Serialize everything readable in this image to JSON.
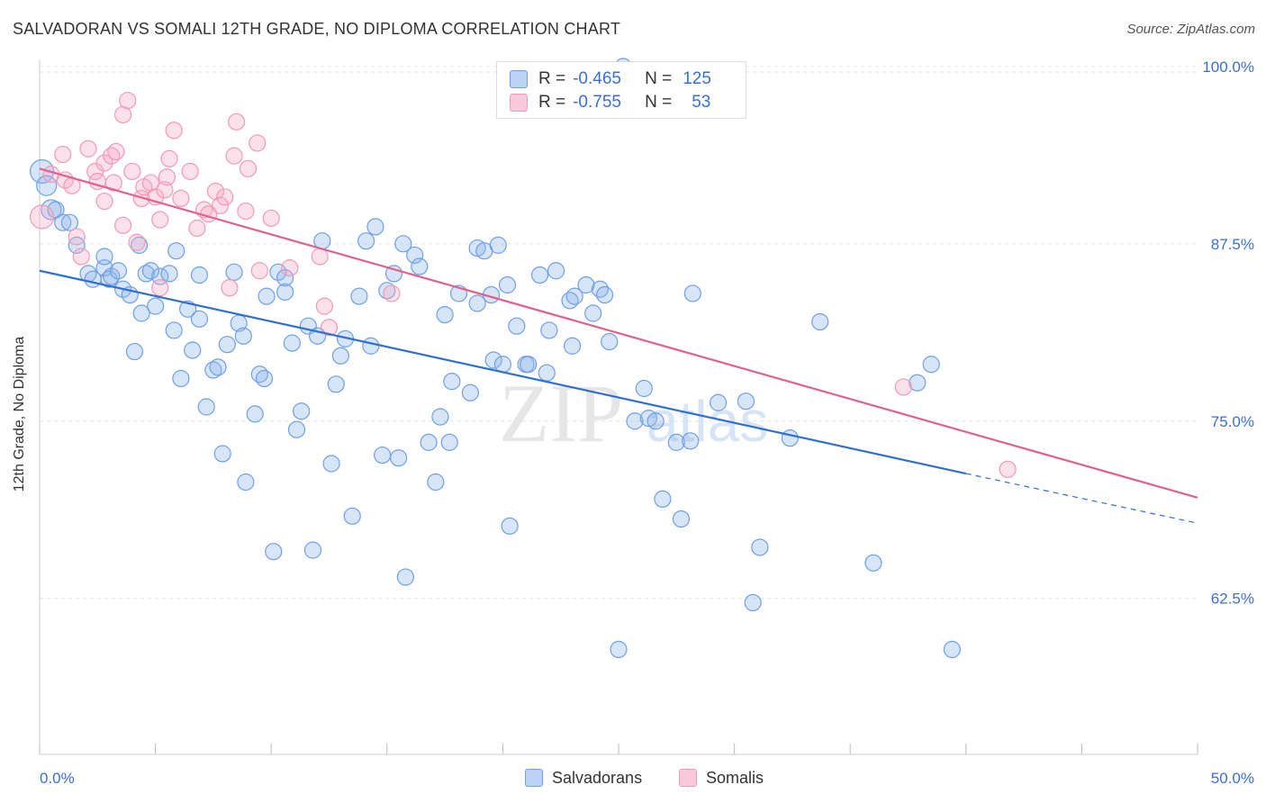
{
  "title": "SALVADORAN VS SOMALI 12TH GRADE, NO DIPLOMA CORRELATION CHART",
  "source": "Source: ZipAtlas.com",
  "watermark": {
    "zip": "ZIP",
    "atlas": "atlas"
  },
  "legend": {
    "rows": [
      {
        "r_label": "R =",
        "r_value": "-0.465",
        "n_label": "N =",
        "n_value": "125"
      },
      {
        "r_label": "R =",
        "r_value": "-0.755",
        "n_label": "N =",
        "n_value": "53"
      }
    ]
  },
  "bottom_legend": {
    "salvadorans": "Salvadorans",
    "somalis": "Somalis"
  },
  "chart_data": {
    "type": "scatter",
    "title": "SALVADORAN VS SOMALI 12TH GRADE, NO DIPLOMA CORRELATION CHART",
    "xlabel": "",
    "ylabel": "12th Grade, No Diploma",
    "xlim": [
      0,
      50
    ],
    "ylim": [
      51.5,
      100.5
    ],
    "x_tick_labels": [
      "0.0%",
      "50.0%"
    ],
    "y_ticks": [
      62.5,
      75.0,
      87.5,
      100.0
    ],
    "y_tick_labels": [
      "62.5%",
      "75.0%",
      "87.5%",
      "100.0%"
    ],
    "grid": true,
    "legend_position": "top-center",
    "colors": {
      "salvadorans": "#6f9fe6",
      "somalis": "#ef9ab6",
      "blue_line": "#2f6fd1",
      "pink_line": "#e0608e",
      "tick_text": "#3a6fd8"
    },
    "series": [
      {
        "name": "Salvadorans",
        "r": -0.465,
        "n": 125,
        "trend": {
          "x": [
            0,
            40
          ],
          "y": [
            85.6,
            71.3
          ],
          "dashed_to": [
            50,
            67.8
          ]
        },
        "points": [
          [
            0.1,
            92.6
          ],
          [
            0.3,
            91.6
          ],
          [
            0.5,
            89.9
          ],
          [
            0.7,
            89.9
          ],
          [
            1.0,
            89.0
          ],
          [
            1.3,
            89.0
          ],
          [
            1.6,
            87.4
          ],
          [
            2.1,
            85.4
          ],
          [
            2.3,
            85.0
          ],
          [
            2.8,
            85.8
          ],
          [
            2.8,
            86.6
          ],
          [
            3.0,
            85.0
          ],
          [
            3.1,
            85.2
          ],
          [
            3.4,
            85.6
          ],
          [
            3.6,
            84.3
          ],
          [
            3.9,
            83.9
          ],
          [
            4.1,
            79.9
          ],
          [
            4.3,
            87.4
          ],
          [
            4.4,
            82.6
          ],
          [
            4.6,
            85.4
          ],
          [
            4.8,
            85.6
          ],
          [
            5.0,
            83.1
          ],
          [
            5.2,
            85.2
          ],
          [
            5.6,
            85.4
          ],
          [
            5.8,
            81.4
          ],
          [
            5.9,
            87.0
          ],
          [
            6.1,
            78.0
          ],
          [
            6.4,
            82.9
          ],
          [
            6.6,
            80.0
          ],
          [
            6.9,
            85.3
          ],
          [
            6.9,
            82.2
          ],
          [
            7.2,
            76.0
          ],
          [
            7.5,
            78.6
          ],
          [
            7.7,
            78.8
          ],
          [
            7.9,
            72.7
          ],
          [
            8.1,
            80.4
          ],
          [
            8.4,
            85.5
          ],
          [
            8.6,
            81.9
          ],
          [
            8.8,
            81.0
          ],
          [
            8.9,
            70.7
          ],
          [
            9.3,
            75.5
          ],
          [
            9.5,
            78.3
          ],
          [
            9.7,
            78.0
          ],
          [
            9.8,
            83.8
          ],
          [
            10.1,
            65.8
          ],
          [
            10.3,
            85.5
          ],
          [
            10.6,
            84.1
          ],
          [
            10.6,
            85.1
          ],
          [
            10.9,
            80.5
          ],
          [
            11.1,
            74.4
          ],
          [
            11.3,
            75.7
          ],
          [
            11.6,
            81.7
          ],
          [
            11.8,
            65.9
          ],
          [
            12.0,
            81.0
          ],
          [
            12.2,
            87.7
          ],
          [
            12.6,
            72.0
          ],
          [
            12.8,
            77.6
          ],
          [
            13.0,
            79.6
          ],
          [
            13.2,
            80.8
          ],
          [
            13.5,
            68.3
          ],
          [
            13.8,
            83.8
          ],
          [
            14.1,
            87.7
          ],
          [
            14.3,
            80.3
          ],
          [
            14.5,
            88.7
          ],
          [
            14.8,
            72.6
          ],
          [
            15.0,
            84.2
          ],
          [
            15.3,
            85.4
          ],
          [
            15.5,
            72.4
          ],
          [
            15.7,
            87.5
          ],
          [
            15.8,
            64.0
          ],
          [
            16.2,
            86.7
          ],
          [
            16.4,
            85.9
          ],
          [
            16.8,
            73.5
          ],
          [
            17.1,
            70.7
          ],
          [
            17.3,
            75.3
          ],
          [
            17.5,
            82.5
          ],
          [
            17.7,
            73.5
          ],
          [
            17.8,
            77.8
          ],
          [
            18.1,
            84.0
          ],
          [
            18.6,
            77.0
          ],
          [
            18.9,
            83.3
          ],
          [
            18.9,
            87.2
          ],
          [
            19.2,
            87.0
          ],
          [
            19.5,
            83.9
          ],
          [
            19.6,
            79.3
          ],
          [
            19.8,
            87.4
          ],
          [
            20.0,
            79.0
          ],
          [
            20.2,
            84.6
          ],
          [
            20.3,
            67.6
          ],
          [
            20.6,
            81.7
          ],
          [
            21.0,
            79.0
          ],
          [
            21.1,
            79.0
          ],
          [
            21.6,
            85.3
          ],
          [
            21.9,
            78.4
          ],
          [
            22.0,
            81.4
          ],
          [
            22.3,
            85.6
          ],
          [
            22.9,
            83.5
          ],
          [
            23.0,
            80.3
          ],
          [
            23.1,
            83.8
          ],
          [
            23.6,
            84.6
          ],
          [
            23.9,
            82.6
          ],
          [
            24.2,
            84.3
          ],
          [
            24.4,
            83.9
          ],
          [
            24.6,
            80.6
          ],
          [
            25.2,
            100.0
          ],
          [
            25.0,
            58.9
          ],
          [
            25.7,
            75.0
          ],
          [
            26.1,
            77.3
          ],
          [
            26.3,
            75.2
          ],
          [
            26.6,
            75.0
          ],
          [
            26.9,
            69.5
          ],
          [
            27.5,
            73.5
          ],
          [
            27.7,
            68.1
          ],
          [
            28.1,
            73.6
          ],
          [
            28.2,
            84.0
          ],
          [
            29.3,
            76.3
          ],
          [
            30.5,
            76.4
          ],
          [
            30.8,
            62.2
          ],
          [
            31.1,
            66.1
          ],
          [
            32.4,
            73.8
          ],
          [
            33.7,
            82.0
          ],
          [
            36.0,
            65.0
          ],
          [
            37.9,
            77.7
          ],
          [
            38.5,
            79.0
          ],
          [
            39.4,
            58.9
          ]
        ]
      },
      {
        "name": "Somalis",
        "r": -0.755,
        "n": 53,
        "trend": {
          "x": [
            0,
            50
          ],
          "y": [
            92.8,
            69.6
          ]
        },
        "points": [
          [
            0.1,
            89.4
          ],
          [
            0.5,
            92.4
          ],
          [
            1.0,
            93.8
          ],
          [
            1.1,
            92.0
          ],
          [
            1.4,
            91.6
          ],
          [
            1.6,
            88.0
          ],
          [
            1.8,
            86.6
          ],
          [
            2.1,
            94.2
          ],
          [
            2.4,
            92.6
          ],
          [
            2.5,
            91.9
          ],
          [
            2.8,
            93.2
          ],
          [
            2.8,
            90.5
          ],
          [
            3.1,
            93.7
          ],
          [
            3.2,
            91.8
          ],
          [
            3.3,
            94.0
          ],
          [
            3.6,
            88.8
          ],
          [
            3.6,
            96.6
          ],
          [
            3.8,
            97.6
          ],
          [
            4.0,
            92.6
          ],
          [
            4.2,
            87.6
          ],
          [
            4.4,
            90.7
          ],
          [
            4.5,
            91.5
          ],
          [
            4.8,
            91.8
          ],
          [
            5.0,
            90.8
          ],
          [
            5.2,
            84.4
          ],
          [
            5.2,
            89.2
          ],
          [
            5.4,
            91.3
          ],
          [
            5.5,
            92.2
          ],
          [
            5.6,
            93.5
          ],
          [
            5.8,
            95.5
          ],
          [
            6.1,
            90.7
          ],
          [
            6.5,
            92.6
          ],
          [
            6.8,
            88.6
          ],
          [
            7.1,
            89.9
          ],
          [
            7.3,
            89.6
          ],
          [
            7.6,
            91.2
          ],
          [
            7.8,
            90.2
          ],
          [
            8.0,
            90.8
          ],
          [
            8.2,
            84.4
          ],
          [
            8.4,
            93.7
          ],
          [
            8.5,
            96.1
          ],
          [
            8.9,
            89.8
          ],
          [
            9.0,
            92.8
          ],
          [
            9.4,
            94.6
          ],
          [
            9.5,
            85.6
          ],
          [
            10.0,
            89.3
          ],
          [
            10.8,
            85.8
          ],
          [
            12.1,
            86.6
          ],
          [
            12.3,
            83.1
          ],
          [
            12.5,
            81.6
          ],
          [
            15.2,
            84.0
          ],
          [
            37.3,
            77.4
          ],
          [
            41.8,
            71.6
          ]
        ]
      }
    ]
  }
}
